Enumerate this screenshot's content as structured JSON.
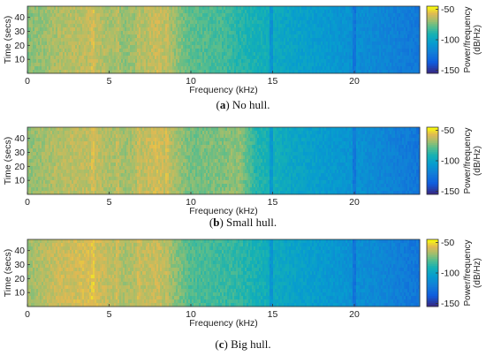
{
  "chart_data": [
    {
      "type": "heatmap",
      "caption_letter": "a",
      "caption_text": "No hull.",
      "xlabel": "Frequency (kHz)",
      "ylabel": "Time (secs)",
      "xlim": [
        0,
        24
      ],
      "ylim": [
        0,
        48
      ],
      "x_ticks": [
        "0",
        "5",
        "10",
        "15",
        "20"
      ],
      "x_tick_values": [
        0,
        5,
        10,
        15,
        20
      ],
      "y_ticks": [
        "10",
        "20",
        "30",
        "40"
      ],
      "y_tick_values": [
        10,
        20,
        30,
        40
      ],
      "colorbar": {
        "label": "Power/frequency (dB/Hz)",
        "range": [
          -155,
          -45
        ],
        "ticks": [
          "-50",
          "-100",
          "-150"
        ],
        "tick_values": [
          -50,
          -100,
          -150
        ]
      },
      "spectral_lines_khz": [
        4.0,
        5.5,
        6.8,
        8.5,
        14.9,
        20.0
      ],
      "profile": {
        "freq_khz": [
          0,
          2,
          4,
          6,
          8,
          10,
          12,
          13,
          14,
          16,
          18,
          20,
          22,
          24
        ],
        "power_db": [
          -72,
          -65,
          -62,
          -70,
          -60,
          -78,
          -82,
          -88,
          -92,
          -100,
          -106,
          -112,
          -118,
          -125
        ]
      }
    },
    {
      "type": "heatmap",
      "caption_letter": "b",
      "caption_text": "Small hull.",
      "xlabel": "Frequency (kHz)",
      "ylabel": "Time (secs)",
      "xlim": [
        0,
        24
      ],
      "ylim": [
        0,
        48
      ],
      "x_ticks": [
        "0",
        "5",
        "10",
        "15",
        "20"
      ],
      "x_tick_values": [
        0,
        5,
        10,
        15,
        20
      ],
      "y_ticks": [
        "10",
        "20",
        "30",
        "40"
      ],
      "y_tick_values": [
        10,
        20,
        30,
        40
      ],
      "colorbar": {
        "label": "Power/frequency (dB/Hz)",
        "range": [
          -155,
          -45
        ],
        "ticks": [
          "-50",
          "-100",
          "-150"
        ],
        "tick_values": [
          -50,
          -100,
          -150
        ]
      },
      "spectral_lines_khz": [
        4.0,
        5.5,
        6.8,
        8.5,
        14.9,
        20.0
      ],
      "profile": {
        "freq_khz": [
          0,
          2,
          4,
          6,
          8,
          10,
          12,
          13,
          14,
          16,
          18,
          20,
          22,
          24
        ],
        "power_db": [
          -70,
          -64,
          -62,
          -68,
          -58,
          -74,
          -72,
          -70,
          -88,
          -98,
          -105,
          -110,
          -118,
          -126
        ]
      }
    },
    {
      "type": "heatmap",
      "caption_letter": "c",
      "caption_text": "Big hull.",
      "xlabel": "Frequency (kHz)",
      "ylabel": "Time (secs)",
      "xlim": [
        0,
        24
      ],
      "ylim": [
        0,
        48
      ],
      "x_ticks": [
        "0",
        "5",
        "10",
        "15",
        "20"
      ],
      "x_tick_values": [
        0,
        5,
        10,
        15,
        20
      ],
      "y_ticks": [
        "10",
        "20",
        "30",
        "40"
      ],
      "y_tick_values": [
        10,
        20,
        30,
        40
      ],
      "colorbar": {
        "label": "Power/frequency (dB/Hz)",
        "range": [
          -155,
          -45
        ],
        "ticks": [
          "-50",
          "-100",
          "-150"
        ],
        "tick_values": [
          -50,
          -100,
          -150
        ]
      },
      "spectral_lines_khz": [
        4.0,
        5.5,
        6.8,
        8.5,
        14.9,
        20.0
      ],
      "profile": {
        "freq_khz": [
          0,
          2,
          4,
          6,
          8,
          10,
          12,
          13,
          14,
          16,
          18,
          20,
          22,
          24
        ],
        "power_db": [
          -68,
          -60,
          -58,
          -66,
          -60,
          -80,
          -84,
          -86,
          -92,
          -100,
          -106,
          -112,
          -118,
          -126
        ]
      }
    }
  ]
}
